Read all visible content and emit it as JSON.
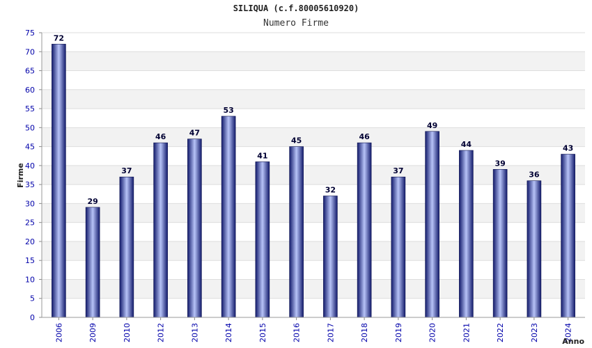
{
  "chart_data": {
    "type": "bar",
    "title": "SILIQUA (c.f.80005610920)",
    "subtitle": "Numero Firme",
    "xlabel": "Anno",
    "ylabel": "Firme",
    "categories": [
      "2006",
      "2009",
      "2010",
      "2012",
      "2013",
      "2014",
      "2015",
      "2016",
      "2017",
      "2018",
      "2019",
      "2020",
      "2021",
      "2022",
      "2023",
      "2024"
    ],
    "values": [
      72,
      29,
      37,
      46,
      47,
      53,
      41,
      45,
      32,
      46,
      37,
      49,
      44,
      39,
      36,
      43
    ],
    "ylim": [
      0,
      75
    ],
    "ytick_step": 5,
    "grid": true,
    "bar_color": "#1a237e",
    "bar_highlight": "#aab6f5",
    "label_color": "#000033",
    "axis_tick_color": "#0000aa"
  }
}
